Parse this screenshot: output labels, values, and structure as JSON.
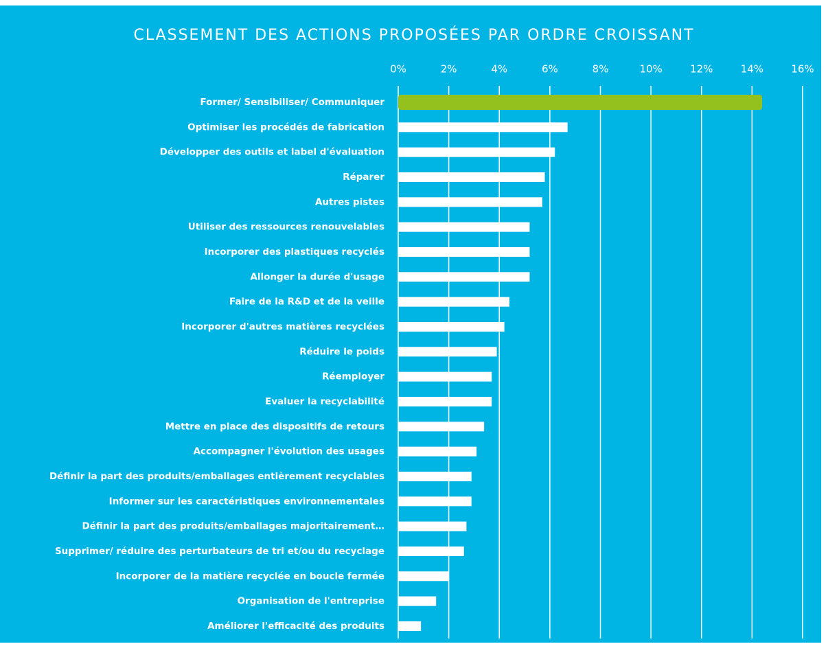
{
  "chart_data": {
    "type": "hbar",
    "title": "CLASSEMENT DES ACTIONS PROPOSÉES PAR ORDRE CROISSANT",
    "categories": [
      "Former/ Sensibiliser/ Communiquer",
      "Optimiser les procédés de fabrication",
      "Développer des outils et label d'évaluation",
      "Réparer",
      "Autres pistes",
      "Utiliser des ressources renouvelables",
      "Incorporer des plastiques recyclés",
      "Allonger la durée d'usage",
      "Faire de la R&D et de la veille",
      "Incorporer d'autres matières recyclées",
      "Réduire le poids",
      "Réemployer",
      "Evaluer  la recyclabilité",
      "Mettre en place des dispositifs de retours",
      "Accompagner l'évolution des usages",
      "Définir la part des produits/emballages entièrement recyclables",
      "Informer sur les caractéristiques environnementales",
      "Définir la part des produits/emballages majoritairement…",
      "Supprimer/ réduire des perturbateurs de tri et/ou du recyclage",
      "Incorporer de la matière recyclée en boucle fermée",
      "Organisation de l'entreprise",
      "Améliorer l'efficacité des produits"
    ],
    "values": [
      14.4,
      6.7,
      6.2,
      5.8,
      5.7,
      5.2,
      5.2,
      5.2,
      4.4,
      4.2,
      3.9,
      3.7,
      3.7,
      3.4,
      3.1,
      2.9,
      2.9,
      2.7,
      2.6,
      2.0,
      1.5,
      0.9
    ],
    "colors": [
      "#95c11f",
      "#ffffff",
      "#ffffff",
      "#ffffff",
      "#ffffff",
      "#ffffff",
      "#ffffff",
      "#ffffff",
      "#ffffff",
      "#ffffff",
      "#ffffff",
      "#ffffff",
      "#ffffff",
      "#ffffff",
      "#ffffff",
      "#ffffff",
      "#ffffff",
      "#ffffff",
      "#ffffff",
      "#ffffff",
      "#ffffff",
      "#ffffff"
    ],
    "xlim": [
      0,
      16
    ],
    "xticks": [
      {
        "value": 0,
        "label": "0%"
      },
      {
        "value": 2,
        "label": "2%"
      },
      {
        "value": 4,
        "label": "4%"
      },
      {
        "value": 6,
        "label": "6%"
      },
      {
        "value": 8,
        "label": "8%"
      },
      {
        "value": 10,
        "label": "10%"
      },
      {
        "value": 12,
        "label": "12%"
      },
      {
        "value": 14,
        "label": "14%"
      },
      {
        "value": 16,
        "label": "16%"
      }
    ],
    "grid": true
  }
}
